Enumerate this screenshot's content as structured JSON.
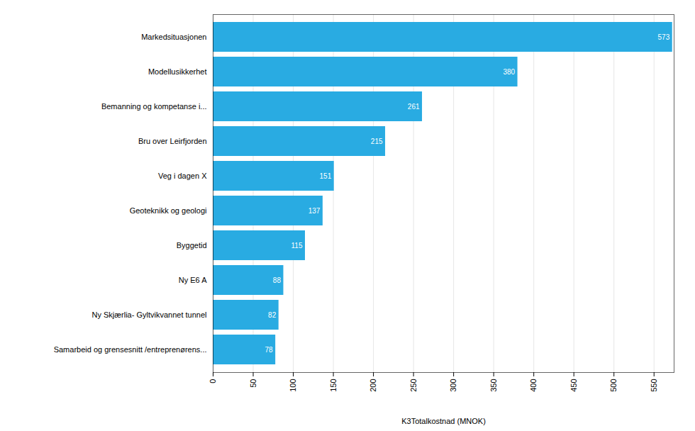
{
  "chart_data": {
    "type": "bar",
    "orientation": "horizontal",
    "categories": [
      "Samarbeid og grensesnitt /entreprenørens...",
      "Ny Skjærlia- Gyltvikvannet tunnel",
      "Ny E6 A",
      "Byggetid",
      "Geoteknikk og geologi",
      "Veg i dagen X",
      "Bru over Leirfjorden",
      "Bemanning og kompetanse i...",
      "Modellusikkerhet",
      "Markedsituasjonen"
    ],
    "values": [
      78,
      82,
      88,
      115,
      137,
      151,
      215,
      261,
      380,
      573
    ],
    "color": "#29ABE2",
    "xlabel": "K3Totalkostnad (MNOK)",
    "xlim": [
      0,
      575
    ],
    "xticks": [
      0,
      50,
      100,
      150,
      200,
      250,
      300,
      350,
      400,
      450,
      500,
      550
    ],
    "grid": true,
    "data_labels": true
  }
}
